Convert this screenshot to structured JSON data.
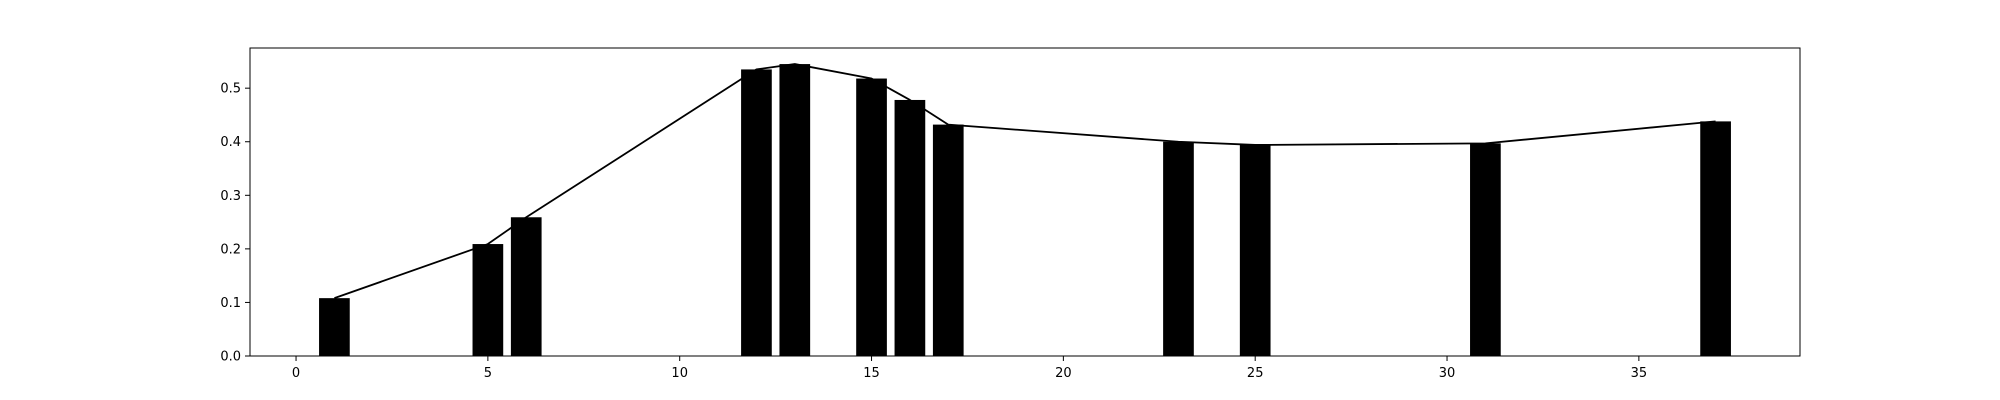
{
  "chart_data": {
    "type": "bar",
    "title": "",
    "xlabel": "",
    "ylabel": "",
    "grid": false,
    "bar_width": 0.8,
    "bar_color": "#000000",
    "line_color": "#000000",
    "xlim": [
      -1.2,
      39.2
    ],
    "ylim": [
      0,
      0.575
    ],
    "x_ticks": [
      0,
      5,
      10,
      15,
      20,
      25,
      30,
      35
    ],
    "y_ticks": [
      0.0,
      0.1,
      0.2,
      0.3,
      0.4,
      0.5
    ],
    "x_tick_labels": [
      "0",
      "5",
      "10",
      "15",
      "20",
      "25",
      "30",
      "35"
    ],
    "y_tick_labels": [
      "0.0",
      "0.1",
      "0.2",
      "0.3",
      "0.4",
      "0.5"
    ],
    "series": [
      {
        "kind": "bar",
        "x": [
          1,
          5,
          6,
          12,
          13,
          15,
          16,
          17,
          23,
          25,
          31,
          37
        ],
        "values": [
          0.108,
          0.209,
          0.259,
          0.535,
          0.545,
          0.518,
          0.478,
          0.432,
          0.4,
          0.394,
          0.397,
          0.438
        ]
      },
      {
        "kind": "line",
        "x": [
          1,
          5,
          6,
          12,
          13,
          15,
          16,
          17,
          23,
          25,
          31,
          37
        ],
        "values": [
          0.108,
          0.209,
          0.259,
          0.535,
          0.545,
          0.518,
          0.478,
          0.432,
          0.4,
          0.394,
          0.397,
          0.438
        ]
      }
    ]
  }
}
